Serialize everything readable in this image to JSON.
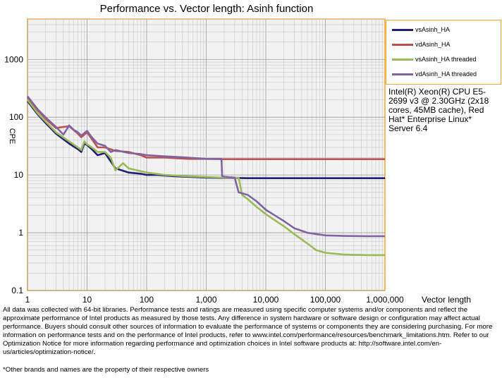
{
  "chart_data": {
    "type": "line",
    "title": "Performance vs. Vector length: Asinh function",
    "xlabel": "Vector length",
    "ylabel": "CPE",
    "x_scale": "log",
    "y_scale": "log",
    "xlim": [
      1,
      1000000
    ],
    "ylim": [
      0.1,
      5000
    ],
    "x_ticks": [
      "1",
      "10",
      "100",
      "1,000",
      "10,000",
      "100,000",
      "1,000,000"
    ],
    "y_ticks": [
      "0.1",
      "1",
      "10",
      "100",
      "1000"
    ],
    "grid": true,
    "legend_position": "right",
    "series": [
      {
        "name": "vsAsinh_HA",
        "color": "#1f1f7a",
        "points": [
          [
            1,
            190
          ],
          [
            1.5,
            110
          ],
          [
            2,
            80
          ],
          [
            3,
            52
          ],
          [
            5,
            35
          ],
          [
            7,
            28
          ],
          [
            8,
            25
          ],
          [
            9,
            35
          ],
          [
            10,
            33
          ],
          [
            12,
            28
          ],
          [
            15,
            22
          ],
          [
            20,
            24
          ],
          [
            30,
            13
          ],
          [
            50,
            11
          ],
          [
            80,
            10.5
          ],
          [
            100,
            10
          ],
          [
            150,
            10
          ],
          [
            200,
            9.8
          ],
          [
            300,
            9.5
          ],
          [
            500,
            9.3
          ],
          [
            1000,
            9
          ],
          [
            1800,
            8.9
          ],
          [
            2000,
            8.9
          ],
          [
            3000,
            8.9
          ],
          [
            5000,
            8.8
          ],
          [
            10000,
            8.8
          ],
          [
            100000,
            8.8
          ],
          [
            1000000,
            8.8
          ]
        ]
      },
      {
        "name": "vdAsinh_HA",
        "color": "#c0504d",
        "points": [
          [
            1,
            220
          ],
          [
            1.5,
            130
          ],
          [
            2,
            95
          ],
          [
            3,
            65
          ],
          [
            5,
            70
          ],
          [
            7,
            52
          ],
          [
            8,
            45
          ],
          [
            10,
            55
          ],
          [
            12,
            42
          ],
          [
            15,
            30
          ],
          [
            20,
            30
          ],
          [
            30,
            26
          ],
          [
            50,
            25
          ],
          [
            80,
            22
          ],
          [
            100,
            20
          ],
          [
            200,
            20
          ],
          [
            500,
            19
          ],
          [
            1000,
            19
          ],
          [
            1800,
            18.8
          ],
          [
            2000,
            18.8
          ],
          [
            5000,
            18.8
          ],
          [
            10000,
            18.8
          ],
          [
            100000,
            18.8
          ],
          [
            1000000,
            18.8
          ]
        ]
      },
      {
        "name": "vsAsinh_HA threaded",
        "color": "#9bbb59",
        "points": [
          [
            1,
            200
          ],
          [
            1.5,
            115
          ],
          [
            2,
            85
          ],
          [
            3,
            55
          ],
          [
            5,
            38
          ],
          [
            7,
            30
          ],
          [
            8,
            27
          ],
          [
            9,
            38
          ],
          [
            10,
            34
          ],
          [
            12,
            30
          ],
          [
            15,
            25
          ],
          [
            20,
            25
          ],
          [
            25,
            20
          ],
          [
            30,
            12
          ],
          [
            40,
            16
          ],
          [
            50,
            13
          ],
          [
            70,
            12
          ],
          [
            100,
            11
          ],
          [
            200,
            10
          ],
          [
            500,
            9.5
          ],
          [
            1000,
            9.2
          ],
          [
            2000,
            9
          ],
          [
            3500,
            9
          ],
          [
            4000,
            4.5
          ],
          [
            5000,
            3.8
          ],
          [
            7000,
            2.8
          ],
          [
            10000,
            2.1
          ],
          [
            20000,
            1.3
          ],
          [
            30000,
            0.95
          ],
          [
            50000,
            0.65
          ],
          [
            70000,
            0.5
          ],
          [
            100000,
            0.45
          ],
          [
            200000,
            0.42
          ],
          [
            500000,
            0.41
          ],
          [
            1000000,
            0.41
          ]
        ]
      },
      {
        "name": "vdAsinh_HA threaded",
        "color": "#8064a2",
        "points": [
          [
            1,
            230
          ],
          [
            1.5,
            135
          ],
          [
            2,
            100
          ],
          [
            3,
            68
          ],
          [
            4,
            50
          ],
          [
            5,
            72
          ],
          [
            6,
            60
          ],
          [
            7,
            55
          ],
          [
            8,
            48
          ],
          [
            10,
            58
          ],
          [
            12,
            45
          ],
          [
            15,
            35
          ],
          [
            20,
            32
          ],
          [
            25,
            25
          ],
          [
            30,
            27
          ],
          [
            50,
            24
          ],
          [
            80,
            23
          ],
          [
            100,
            22
          ],
          [
            200,
            21
          ],
          [
            500,
            20
          ],
          [
            1000,
            19
          ],
          [
            1800,
            19
          ],
          [
            1850,
            9.5
          ],
          [
            2000,
            9.3
          ],
          [
            3000,
            9
          ],
          [
            3500,
            5
          ],
          [
            5000,
            4.5
          ],
          [
            7000,
            3.5
          ],
          [
            10000,
            2.5
          ],
          [
            20000,
            1.6
          ],
          [
            30000,
            1.2
          ],
          [
            50000,
            1.0
          ],
          [
            100000,
            0.9
          ],
          [
            200000,
            0.88
          ],
          [
            500000,
            0.87
          ],
          [
            1000000,
            0.87
          ]
        ]
      }
    ]
  },
  "cpu_info": "Intel(R) Xeon(R) CPU E5-2699 v3 @ 2.30GHz (2x18 cores, 45MB cache), Red Hat* Enterprise Linux* Server 6.4",
  "disclaimer": "All data was collected with 64-bit libraries. Performance tests and ratings are measured using specific computer systems and/or components and reflect the approximate performance of Intel products as measured by those tests. Any difference in system hardware or software design or configuration may affect actual performance. Buyers should consult other sources of information to evaluate the performance of systems or components they are considering purchasing. For more information on performance tests and on the performance of Intel products, refer to www.intel.com/performance/resources/benchmark_limitations.htm. Refer to our Optimization Notice for more information regarding performance and optimization choices in Intel software products at: http://software.intel.com/en-us/articles/optimization-notice/.",
  "footnote": "*Other brands and names are the property of their respective owners"
}
